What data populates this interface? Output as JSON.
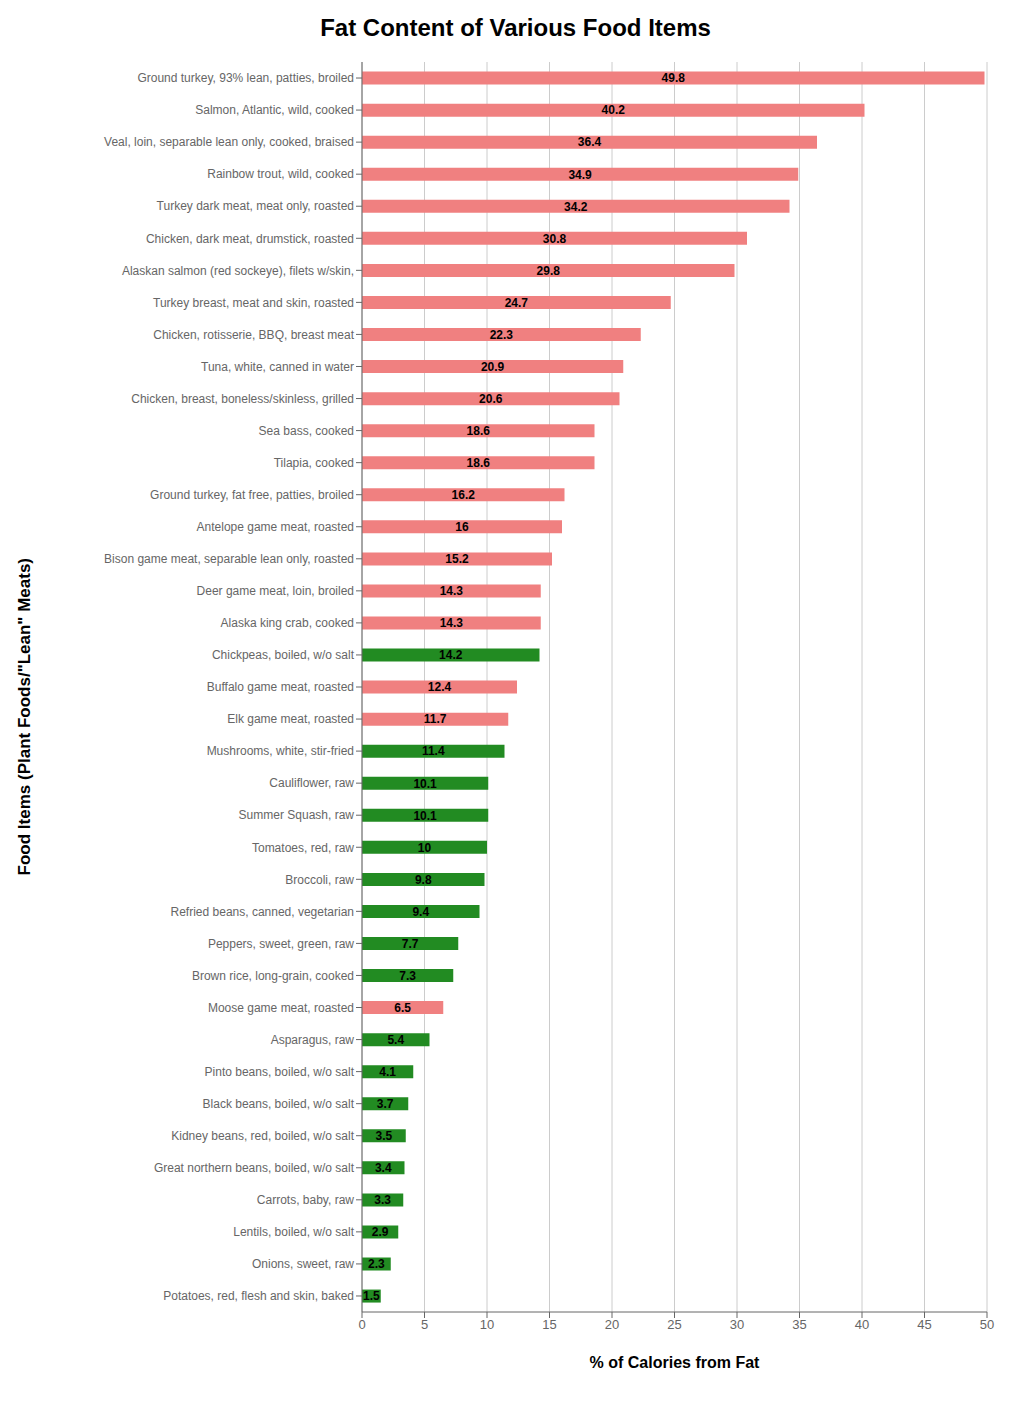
{
  "chart_data": {
    "type": "bar",
    "orientation": "horizontal",
    "title": "Fat Content of Various Food Items",
    "xlabel": "% of Calories from Fat",
    "ylabel": "Food Items (Plant Foods/\"Lean\" Meats)",
    "categories": [
      "Ground turkey, 93% lean, patties, broiled",
      "Salmon, Atlantic, wild, cooked",
      "Veal, loin, separable lean only, cooked, braised",
      "Rainbow trout, wild, cooked",
      "Turkey dark meat, meat only, roasted",
      "Chicken, dark meat, drumstick, roasted",
      "Alaskan salmon (red sockeye), filets w/skin,",
      "Turkey breast, meat and skin, roasted",
      "Chicken, rotisserie, BBQ, breast meat",
      "Tuna, white, canned in water",
      "Chicken, breast, boneless/skinless, grilled",
      "Sea bass, cooked",
      "Tilapia, cooked",
      "Ground turkey, fat free, patties, broiled",
      "Antelope game meat, roasted",
      "Bison game meat, separable lean only, roasted",
      "Deer game meat, loin, broiled",
      "Alaska king crab, cooked",
      "Chickpeas, boiled, w/o salt",
      "Buffalo game meat, roasted",
      "Elk game meat, roasted",
      "Mushrooms, white, stir-fried",
      "Cauliflower, raw",
      "Summer Squash, raw",
      "Tomatoes, red, raw",
      "Broccoli, raw",
      "Refried beans, canned, vegetarian",
      "Peppers, sweet, green, raw",
      "Brown rice, long-grain, cooked",
      "Moose game meat, roasted",
      "Asparagus, raw",
      "Pinto beans, boiled, w/o salt",
      "Black beans, boiled, w/o salt",
      "Kidney beans, red, boiled, w/o salt",
      "Great northern beans, boiled, w/o salt",
      "Carrots, baby, raw",
      "Lentils, boiled, w/o salt",
      "Onions, sweet, raw",
      "Potatoes, red, flesh and skin, baked"
    ],
    "values": [
      49.8,
      40.2,
      36.4,
      34.9,
      34.2,
      30.8,
      29.8,
      24.7,
      22.3,
      20.9,
      20.6,
      18.6,
      18.6,
      16.2,
      16,
      15.2,
      14.3,
      14.3,
      14.2,
      12.4,
      11.7,
      11.4,
      10.1,
      10.1,
      10,
      9.8,
      9.4,
      7.7,
      7.3,
      6.5,
      5.4,
      4.1,
      3.7,
      3.5,
      3.4,
      3.3,
      2.9,
      2.3,
      1.5
    ],
    "colors": [
      "#F08080",
      "#F08080",
      "#F08080",
      "#F08080",
      "#F08080",
      "#F08080",
      "#F08080",
      "#F08080",
      "#F08080",
      "#F08080",
      "#F08080",
      "#F08080",
      "#F08080",
      "#F08080",
      "#F08080",
      "#F08080",
      "#F08080",
      "#F08080",
      "#228B22",
      "#F08080",
      "#F08080",
      "#228B22",
      "#228B22",
      "#228B22",
      "#228B22",
      "#228B22",
      "#228B22",
      "#228B22",
      "#228B22",
      "#F08080",
      "#228B22",
      "#228B22",
      "#228B22",
      "#228B22",
      "#228B22",
      "#228B22",
      "#228B22",
      "#228B22",
      "#228B22"
    ],
    "xlim": [
      0,
      50
    ],
    "xticks": [
      0,
      5,
      10,
      15,
      20,
      25,
      30,
      35,
      40,
      45,
      50
    ],
    "grid": true,
    "data_labels": true
  }
}
